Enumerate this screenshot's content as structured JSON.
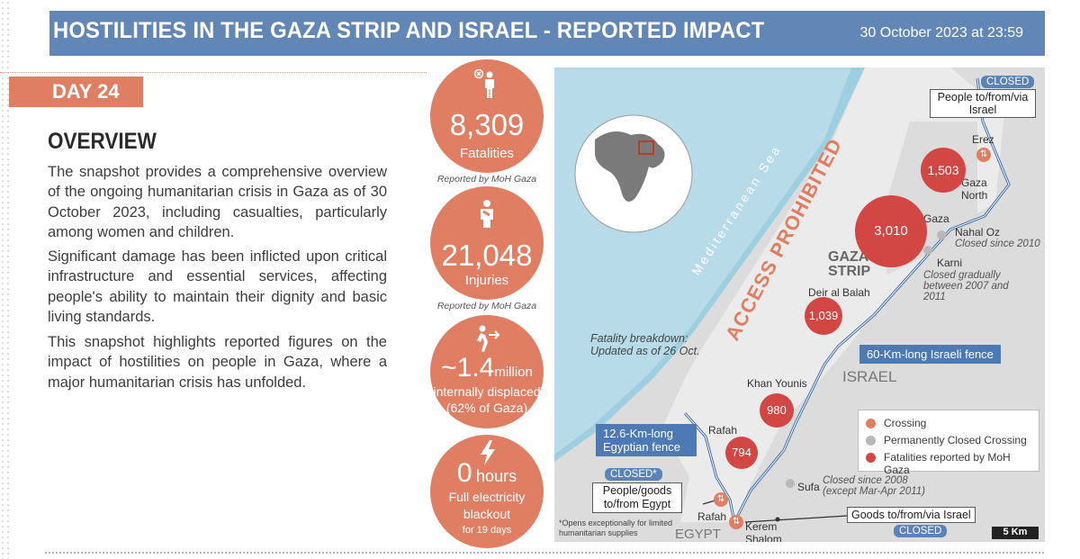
{
  "header": {
    "title": "HOSTILITIES IN THE GAZA STRIP AND ISRAEL - REPORTED IMPACT",
    "date": "30 October 2023 at 23:59"
  },
  "day": "DAY 24",
  "overview": {
    "heading": "OVERVIEW",
    "paragraphs": [
      "The snapshot provides a comprehensive overview of the ongoing humanitarian crisis in Gaza as of 30 October 2023, including casualties, particularly among women and children.",
      "Significant damage has been inflicted upon critical infrastructure and essential services, affecting people's ability to maintain their dignity and basic living standards.",
      "This snapshot highlights reported figures on the impact of hostilities on people in Gaza, where a major humanitarian crisis has unfolded."
    ]
  },
  "stats": {
    "fatalities": {
      "value": "8,309",
      "label": "Fatalities",
      "note": "Reported by MoH Gaza",
      "icon": "person-x-icon"
    },
    "injuries": {
      "value": "21,048",
      "label": "Injuries",
      "note": "Reported by MoH Gaza",
      "icon": "injured-person-icon"
    },
    "displaced": {
      "value": "~1.4",
      "unit": "million",
      "label1": "internally displaced",
      "label2": "(62% of Gaza)",
      "icon": "running-person-icon"
    },
    "electricity": {
      "value": "0",
      "unit": "hours",
      "label1": "Full electricity",
      "label2": "blackout",
      "label3": "for 19 days",
      "icon": "lightning-icon"
    }
  },
  "map": {
    "sea_label": "Mediterranean Sea",
    "access": "ACCESS PROHIBITED",
    "gaza_strip": "GAZA STRIP",
    "israel": "ISRAEL",
    "egypt": "EGYPT",
    "fatality_note": "Fatality breakdown: Updated as of 26 Oct.",
    "places": {
      "erez": "Erez",
      "gaza_north": "Gaza North",
      "gaza": "Gaza",
      "nahal_oz": "Nahal Oz",
      "nahal_oz_note": "Closed since 2010",
      "karni": "Karni",
      "karni_note": "Closed gradually between 2007 and 2011",
      "deir": "Deir al Balah",
      "khan": "Khan Younis",
      "rafah": "Rafah",
      "rafah_crossing": "Rafah",
      "sufa": "Sufa",
      "sufa_note": "Closed since  2008 (except Mar-Apr 2011)",
      "kerem": "Kerem Shalom"
    },
    "fatalities": {
      "gaza_north": "1,503",
      "gaza": "3,010",
      "deir": "1,039",
      "khan": "980",
      "rafah": "794"
    },
    "boxes": {
      "erez_closed": "CLOSED",
      "erez_box": "People to/from/via Israel",
      "rafah_closed": "CLOSED*",
      "rafah_box": "People/goods to/from Egypt",
      "kerem_box": "Goods to/from/via Israel",
      "kerem_closed": "CLOSED"
    },
    "fence_israel": "60-Km-long Israeli fence",
    "fence_egypt": "12.6-Km-long Egyptian fence",
    "footnote": "*Opens exceptionally for limited humanitarian supplies",
    "legend": [
      "Crossing",
      "Permanently Closed Crossing",
      "Fatalities reported by MoH Gaza"
    ],
    "scale": "5 Km",
    "colors": {
      "sea": "#b7dbe8",
      "land": "#dcdcdc",
      "fatality": "#d24744",
      "accent": "#e07e63",
      "blue": "#4d79b4"
    }
  }
}
